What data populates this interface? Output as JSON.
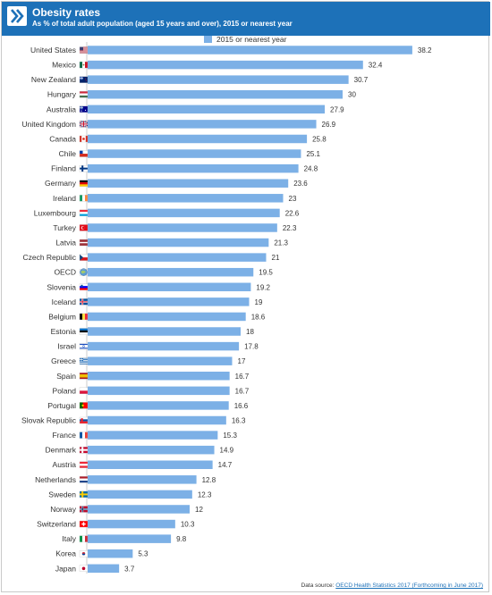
{
  "header": {
    "title": "Obesity rates",
    "subtitle": "As % of total adult population (aged 15 years and over), 2015 or nearest year",
    "logo_icon": "double-chevron-right-icon",
    "color": "#1d71b8"
  },
  "source": {
    "prefix": "Data source:",
    "link": "OECD Health Statistics 2017 (Forthcoming in June 2017)"
  },
  "chart_data": {
    "type": "bar",
    "orientation": "horizontal",
    "title": "Obesity rates",
    "subtitle": "As % of total adult population (aged 15 years and over), 2015 or nearest year",
    "legend": "top",
    "grid": false,
    "xlim": [
      0,
      40
    ],
    "bar_color": "#7cb0e6",
    "categories": [
      "United States",
      "Mexico",
      "New Zealand",
      "Hungary",
      "Australia",
      "United Kingdom",
      "Canada",
      "Chile",
      "Finland",
      "Germany",
      "Ireland",
      "Luxembourg",
      "Turkey",
      "Latvia",
      "Czech Republic",
      "OECD",
      "Slovenia",
      "Iceland",
      "Belgium",
      "Estonia",
      "Israel",
      "Greece",
      "Spain",
      "Poland",
      "Portugal",
      "Slovak Republic",
      "France",
      "Denmark",
      "Austria",
      "Netherlands",
      "Sweden",
      "Norway",
      "Switzerland",
      "Italy",
      "Korea",
      "Japan"
    ],
    "series": [
      {
        "name": "2015 or nearest year",
        "values": [
          38.2,
          32.4,
          30.7,
          30,
          27.9,
          26.9,
          25.8,
          25.1,
          24.8,
          23.6,
          23,
          22.6,
          22.3,
          21.3,
          21,
          19.5,
          19.2,
          19,
          18.6,
          18,
          17.8,
          17,
          16.7,
          16.7,
          16.6,
          16.3,
          15.3,
          14.9,
          14.7,
          12.8,
          12.3,
          12,
          10.3,
          9.8,
          5.3,
          3.7
        ]
      }
    ],
    "flag_icons": [
      "us-flag-icon",
      "mexico-flag-icon",
      "new-zealand-flag-icon",
      "hungary-flag-icon",
      "australia-flag-icon",
      "united-kingdom-flag-icon",
      "canada-flag-icon",
      "chile-flag-icon",
      "finland-flag-icon",
      "germany-flag-icon",
      "ireland-flag-icon",
      "luxembourg-flag-icon",
      "turkey-flag-icon",
      "latvia-flag-icon",
      "czech-republic-flag-icon",
      "oecd-globe-icon",
      "slovenia-flag-icon",
      "iceland-flag-icon",
      "belgium-flag-icon",
      "estonia-flag-icon",
      "israel-flag-icon",
      "greece-flag-icon",
      "spain-flag-icon",
      "poland-flag-icon",
      "portugal-flag-icon",
      "slovak-republic-flag-icon",
      "france-flag-icon",
      "denmark-flag-icon",
      "austria-flag-icon",
      "netherlands-flag-icon",
      "sweden-flag-icon",
      "norway-flag-icon",
      "switzerland-flag-icon",
      "italy-flag-icon",
      "korea-flag-icon",
      "japan-flag-icon"
    ]
  }
}
